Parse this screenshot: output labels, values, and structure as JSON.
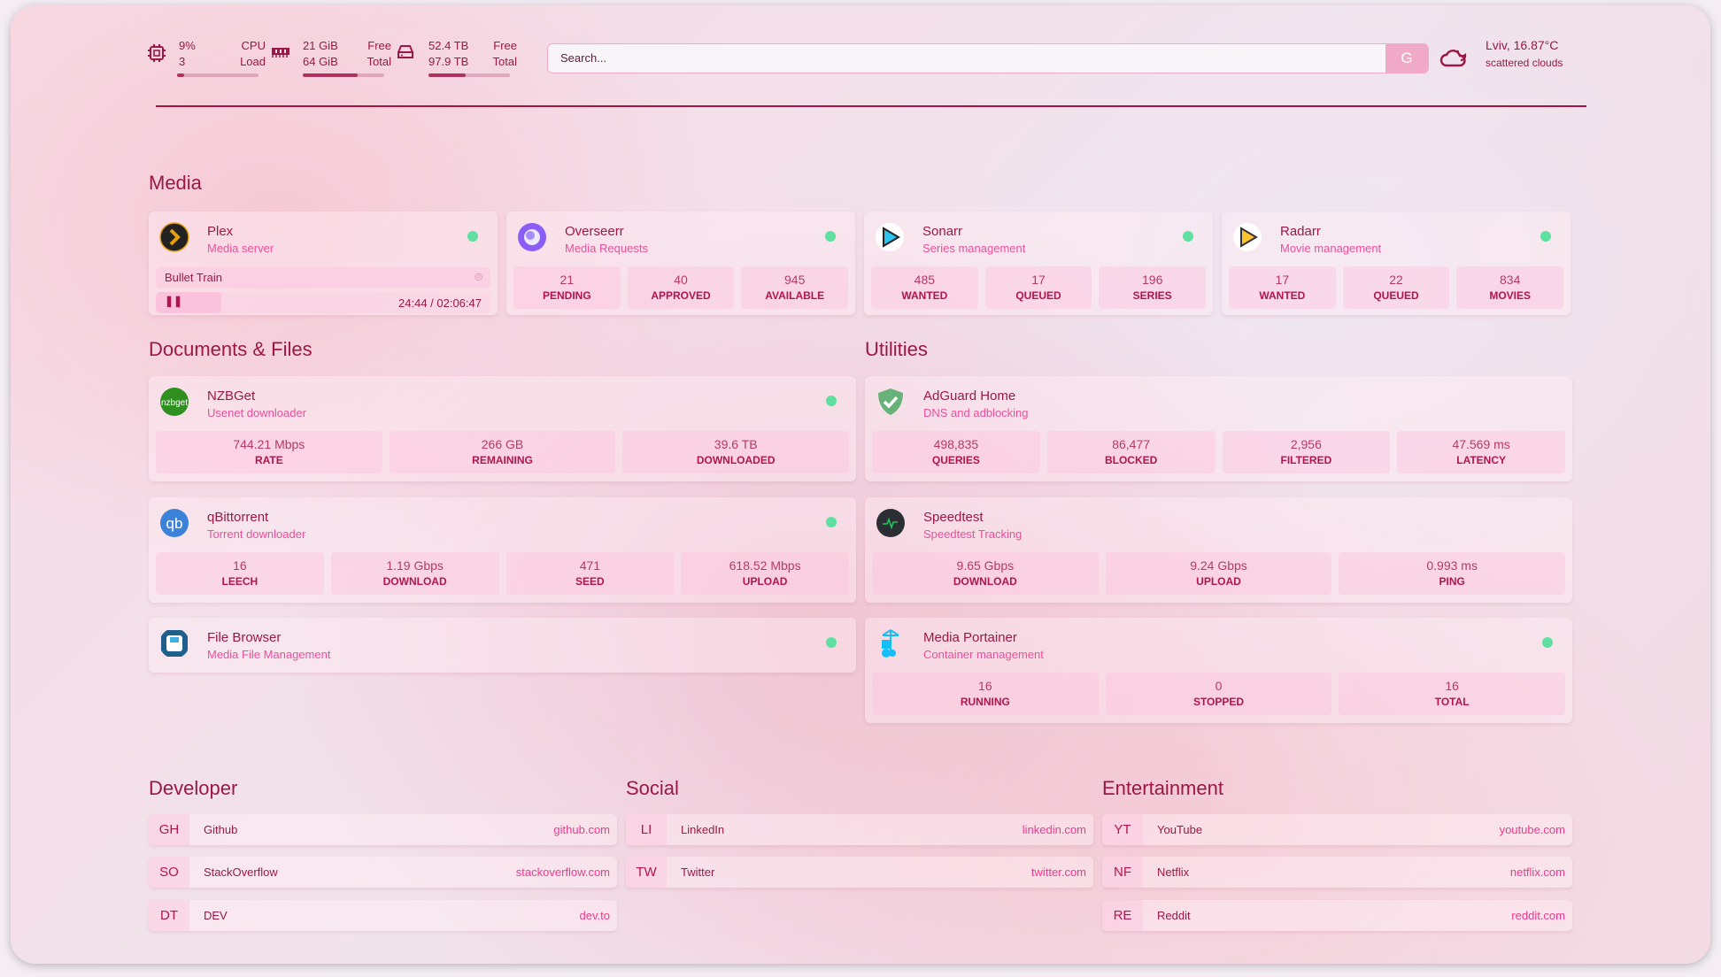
{
  "header": {
    "cpu": {
      "value": "9%",
      "sub": "3",
      "label1": "CPU",
      "label2": "Load",
      "percent": 9
    },
    "memory": {
      "free": "21 GiB",
      "total": "64 GiB",
      "label1": "Free",
      "label2": "Total",
      "used_percent": 67
    },
    "disk": {
      "free": "52.4 TB",
      "total": "97.9 TB",
      "label1": "Free",
      "label2": "Total",
      "used_percent": 46
    },
    "search": {
      "placeholder": "Search...",
      "provider_label": "G"
    },
    "weather": {
      "location_temp": "Lviv, 16.87°C",
      "condition": "scattered clouds",
      "icon": "cloud-moon-icon"
    }
  },
  "colors": {
    "accent": "#9b1846",
    "subtitle": "#ec4e9c",
    "status_ok": "#5fe0a0"
  },
  "groups": {
    "media": "Media",
    "docs": "Documents & Files",
    "utilities": "Utilities",
    "developer": "Developer",
    "social": "Social",
    "entertainment": "Entertainment"
  },
  "services": [
    {
      "name": "Plex",
      "desc": "Media server",
      "icon": "plex-icon",
      "status": "up",
      "now_playing": {
        "title": "Bullet Train",
        "time": "24:44 / 02:06:47",
        "progress": 19.5
      }
    },
    {
      "name": "Overseerr",
      "desc": "Media Requests",
      "icon": "overseerr-icon",
      "status": "up",
      "stats": [
        {
          "v": "21",
          "l": "PENDING"
        },
        {
          "v": "40",
          "l": "APPROVED"
        },
        {
          "v": "945",
          "l": "AVAILABLE"
        }
      ]
    },
    {
      "name": "Sonarr",
      "desc": "Series management",
      "icon": "sonarr-icon",
      "status": "up",
      "stats": [
        {
          "v": "485",
          "l": "WANTED"
        },
        {
          "v": "17",
          "l": "QUEUED"
        },
        {
          "v": "196",
          "l": "SERIES"
        }
      ]
    },
    {
      "name": "Radarr",
      "desc": "Movie management",
      "icon": "radarr-icon",
      "status": "up",
      "stats": [
        {
          "v": "17",
          "l": "WANTED"
        },
        {
          "v": "22",
          "l": "QUEUED"
        },
        {
          "v": "834",
          "l": "MOVIES"
        }
      ]
    },
    {
      "name": "NZBGet",
      "desc": "Usenet downloader",
      "icon": "nzbget-icon",
      "status": "up",
      "stats": [
        {
          "v": "744.21 Mbps",
          "l": "RATE"
        },
        {
          "v": "266 GB",
          "l": "REMAINING"
        },
        {
          "v": "39.6 TB",
          "l": "DOWNLOADED"
        }
      ]
    },
    {
      "name": "qBittorrent",
      "desc": "Torrent downloader",
      "icon": "qbittorrent-icon",
      "status": "up",
      "stats": [
        {
          "v": "16",
          "l": "LEECH"
        },
        {
          "v": "1.19 Gbps",
          "l": "DOWNLOAD"
        },
        {
          "v": "471",
          "l": "SEED"
        },
        {
          "v": "618.52 Mbps",
          "l": "UPLOAD"
        }
      ]
    },
    {
      "name": "File Browser",
      "desc": "Media File Management",
      "icon": "file-browser-icon",
      "status": "up"
    },
    {
      "name": "AdGuard Home",
      "desc": "DNS and adblocking",
      "icon": "adguard-icon",
      "stats": [
        {
          "v": "498,835",
          "l": "QUERIES"
        },
        {
          "v": "86,477",
          "l": "BLOCKED"
        },
        {
          "v": "2,956",
          "l": "FILTERED"
        },
        {
          "v": "47.569 ms",
          "l": "LATENCY"
        }
      ]
    },
    {
      "name": "Speedtest",
      "desc": "Speedtest Tracking",
      "icon": "speedtest-icon",
      "stats": [
        {
          "v": "9.65 Gbps",
          "l": "DOWNLOAD"
        },
        {
          "v": "9.24 Gbps",
          "l": "UPLOAD"
        },
        {
          "v": "0.993 ms",
          "l": "PING"
        }
      ]
    },
    {
      "name": "Media Portainer",
      "desc": "Container management",
      "icon": "portainer-icon",
      "status": "up",
      "stats": [
        {
          "v": "16",
          "l": "RUNNING"
        },
        {
          "v": "0",
          "l": "STOPPED"
        },
        {
          "v": "16",
          "l": "TOTAL"
        }
      ]
    }
  ],
  "bookmarks": [
    [
      {
        "abbr": "GH",
        "name": "Github",
        "url": "github.com"
      },
      {
        "abbr": "SO",
        "name": "StackOverflow",
        "url": "stackoverflow.com"
      },
      {
        "abbr": "DT",
        "name": "DEV",
        "url": "dev.to"
      }
    ],
    [
      {
        "abbr": "LI",
        "name": "LinkedIn",
        "url": "linkedin.com"
      },
      {
        "abbr": "TW",
        "name": "Twitter",
        "url": "twitter.com"
      }
    ],
    [
      {
        "abbr": "YT",
        "name": "YouTube",
        "url": "youtube.com"
      },
      {
        "abbr": "NF",
        "name": "Netflix",
        "url": "netflix.com"
      },
      {
        "abbr": "RE",
        "name": "Reddit",
        "url": "reddit.com"
      }
    ]
  ]
}
